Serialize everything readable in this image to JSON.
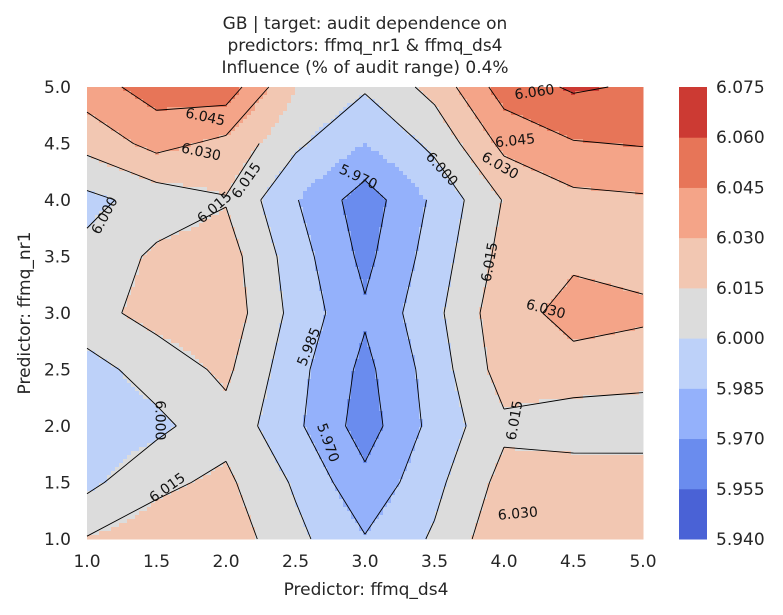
{
  "chart_data": {
    "type": "contour",
    "title_lines": [
      "GB | target: audit dependence on",
      "predictors: ffmq_nr1 & ffmq_ds4",
      "Influence (% of audit range) 0.4%"
    ],
    "xlabel": "Predictor: ffmq_ds4",
    "ylabel": "Predictor: ffmq_nr1",
    "xlim": [
      1.0,
      5.0
    ],
    "ylim": [
      1.0,
      5.0
    ],
    "xticks": [
      "1.0",
      "1.5",
      "2.0",
      "2.5",
      "3.0",
      "3.5",
      "4.0",
      "4.5",
      "5.0"
    ],
    "yticks": [
      "1.0",
      "1.5",
      "2.0",
      "2.5",
      "3.0",
      "3.5",
      "4.0",
      "4.5",
      "5.0"
    ],
    "grid_x": [
      1.0,
      1.5,
      2.0,
      2.5,
      3.0,
      3.5,
      4.0,
      4.5,
      5.0
    ],
    "grid_y": [
      1.0,
      1.5,
      2.0,
      2.5,
      3.0,
      3.5,
      4.0,
      4.5,
      5.0
    ],
    "z": [
      [
        6.016,
        6.022,
        6.024,
        6.004,
        5.986,
        6.002,
        6.026,
        6.03,
        6.03
      ],
      [
        5.996,
        6.012,
        6.018,
        5.998,
        5.974,
        5.996,
        6.02,
        6.027,
        6.029
      ],
      [
        5.99,
        5.996,
        6.01,
        5.988,
        5.963,
        5.99,
        6.012,
        6.004,
        6.002
      ],
      [
        5.994,
        6.007,
        6.018,
        5.99,
        5.966,
        5.992,
        6.022,
        6.026,
        6.024
      ],
      [
        6.01,
        6.02,
        6.024,
        5.995,
        5.972,
        5.996,
        6.025,
        6.034,
        6.032
      ],
      [
        6.004,
        6.018,
        6.022,
        5.992,
        5.966,
        5.992,
        6.02,
        6.028,
        6.026
      ],
      [
        5.996,
        6.006,
        6.014,
        5.986,
        5.962,
        5.988,
        6.016,
        6.026,
        6.028
      ],
      [
        6.02,
        6.035,
        6.026,
        6.003,
        5.985,
        6.004,
        6.034,
        6.044,
        6.046
      ],
      [
        6.038,
        6.052,
        6.054,
        6.015,
        6.002,
        6.02,
        6.052,
        6.062,
        6.058
      ]
    ],
    "levels": [
      5.94,
      5.955,
      5.97,
      5.985,
      6.0,
      6.015,
      6.03,
      6.045,
      6.06,
      6.075
    ],
    "level_colors": [
      "#4a62d6",
      "#6a8cee",
      "#94b1fb",
      "#bdd1f9",
      "#dcdcdc",
      "#f2c7b2",
      "#f4a488",
      "#e77558",
      "#cc3a33"
    ],
    "colorbar_ticks": [
      "5.940",
      "5.955",
      "5.970",
      "5.985",
      "6.000",
      "6.015",
      "6.030",
      "6.045",
      "6.060",
      "6.075"
    ],
    "contour_labels": [
      {
        "text": "6.060",
        "x": 4.22,
        "y": 4.95,
        "rotate": -8
      },
      {
        "text": "6.045",
        "x": 1.85,
        "y": 4.73,
        "rotate": 12
      },
      {
        "text": "6.045",
        "x": 4.08,
        "y": 4.52,
        "rotate": -6
      },
      {
        "text": "6.030",
        "x": 1.82,
        "y": 4.42,
        "rotate": 12
      },
      {
        "text": "6.030",
        "x": 3.97,
        "y": 4.3,
        "rotate": 30
      },
      {
        "text": "6.030",
        "x": 4.3,
        "y": 3.03,
        "rotate": 15
      },
      {
        "text": "6.030",
        "x": 4.1,
        "y": 1.22,
        "rotate": -5
      },
      {
        "text": "5.970",
        "x": 2.95,
        "y": 4.2,
        "rotate": 25
      },
      {
        "text": "6.000",
        "x": 3.55,
        "y": 4.27,
        "rotate": 48
      },
      {
        "text": "6.015",
        "x": 2.15,
        "y": 4.17,
        "rotate": -55
      },
      {
        "text": "6.015",
        "x": 1.92,
        "y": 3.93,
        "rotate": -40
      },
      {
        "text": "6.015",
        "x": 3.9,
        "y": 3.45,
        "rotate": -80
      },
      {
        "text": "6.015",
        "x": 4.08,
        "y": 2.05,
        "rotate": -80
      },
      {
        "text": "6.015",
        "x": 1.58,
        "y": 1.45,
        "rotate": -35
      },
      {
        "text": "6.000",
        "x": 1.13,
        "y": 3.86,
        "rotate": -62
      },
      {
        "text": "6.000",
        "x": 1.52,
        "y": 2.05,
        "rotate": 90
      },
      {
        "text": "5.985",
        "x": 2.6,
        "y": 2.7,
        "rotate": -68
      },
      {
        "text": "5.970",
        "x": 2.73,
        "y": 1.85,
        "rotate": 70
      }
    ]
  }
}
